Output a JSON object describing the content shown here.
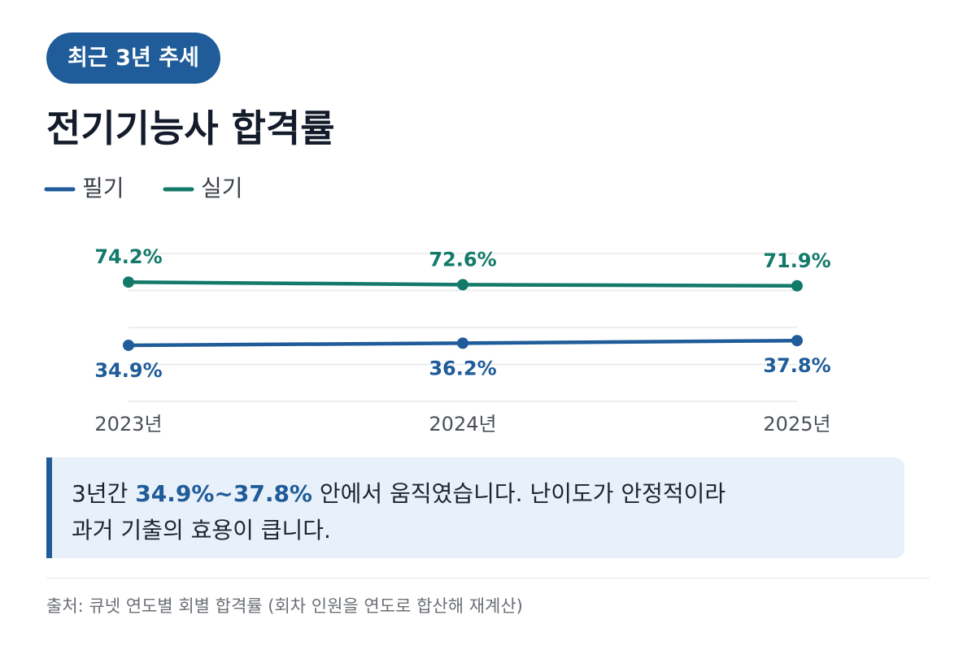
{
  "badge": "최근 3년 추세",
  "chart_data": {
    "type": "line",
    "title": "전기기능사 합격률",
    "categories": [
      "2023년",
      "2024년",
      "2025년"
    ],
    "series": [
      {
        "name": "필기",
        "color": "#1f5c99",
        "values": [
          34.9,
          36.2,
          37.8
        ],
        "value_labels": [
          "34.9%",
          "36.2%",
          "37.8%"
        ]
      },
      {
        "name": "실기",
        "color": "#137a6a",
        "values": [
          74.2,
          72.6,
          71.9
        ],
        "value_labels": [
          "74.2%",
          "72.6%",
          "71.9%"
        ]
      }
    ],
    "ylim": [
      0,
      92
    ],
    "yticks": [
      0,
      23,
      46,
      69,
      92
    ],
    "grid": true
  },
  "note": {
    "lines": [
      [
        "3년간 ",
        "34.9%~37.8%",
        " 안에서 움직였습니다. 난이도가 안정적이라"
      ],
      [
        "과거 기출의 효용이 큽니다."
      ]
    ]
  },
  "source": "출처: 큐넷 연도별 회별 합격률 (회차 인원을 연도로 합산해 재계산)"
}
